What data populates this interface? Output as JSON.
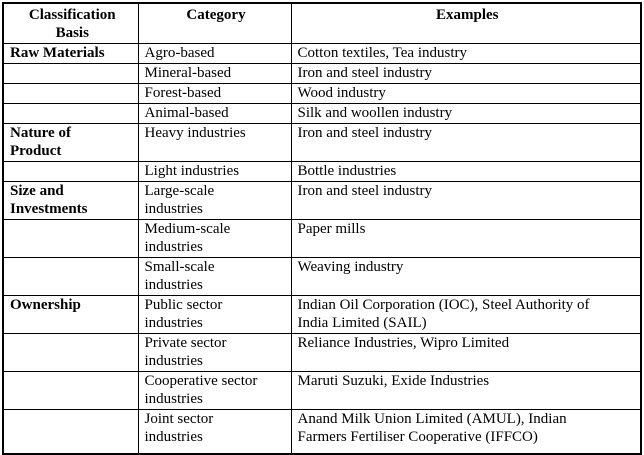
{
  "table": {
    "headers": [
      "Classification\nBasis",
      "Category",
      "Examples"
    ],
    "rows": [
      {
        "basis": "Raw Materials",
        "category": "Agro-based",
        "examples": "Cotton textiles, Tea industry"
      },
      {
        "basis": "",
        "category": "Mineral-based",
        "examples": "Iron and steel industry"
      },
      {
        "basis": "",
        "category": "Forest-based",
        "examples": "Wood industry"
      },
      {
        "basis": "",
        "category": "Animal-based",
        "examples": "Silk and woollen industry"
      },
      {
        "basis": "Nature of\nProduct",
        "category": "Heavy industries",
        "examples": "Iron and steel industry"
      },
      {
        "basis": "",
        "category": "Light industries",
        "examples": "Bottle industries"
      },
      {
        "basis": "Size and\nInvestments",
        "category": "Large-scale\nindustries",
        "examples": "Iron and steel industry"
      },
      {
        "basis": "",
        "category": "Medium-scale\nindustries",
        "examples": "Paper mills"
      },
      {
        "basis": "",
        "category": "Small-scale\nindustries",
        "examples": "Weaving industry"
      },
      {
        "basis": "Ownership",
        "category": "Public sector\nindustries",
        "examples": "Indian Oil Corporation (IOC), Steel Authority of\nIndia Limited (SAIL)"
      },
      {
        "basis": "",
        "category": "Private sector\nindustries",
        "examples": "Reliance Industries, Wipro Limited"
      },
      {
        "basis": "",
        "category": "Cooperative sector\nindustries",
        "examples": "Maruti Suzuki, Exide Industries"
      },
      {
        "basis": "",
        "category": "Joint sector\nindustries",
        "examples": "Anand Milk Union Limited (AMUL), Indian\nFarmers Fertiliser Cooperative (IFFCO)"
      }
    ],
    "colors": {
      "border": "#000000",
      "background": "#ffffff",
      "text": "#000000"
    }
  }
}
